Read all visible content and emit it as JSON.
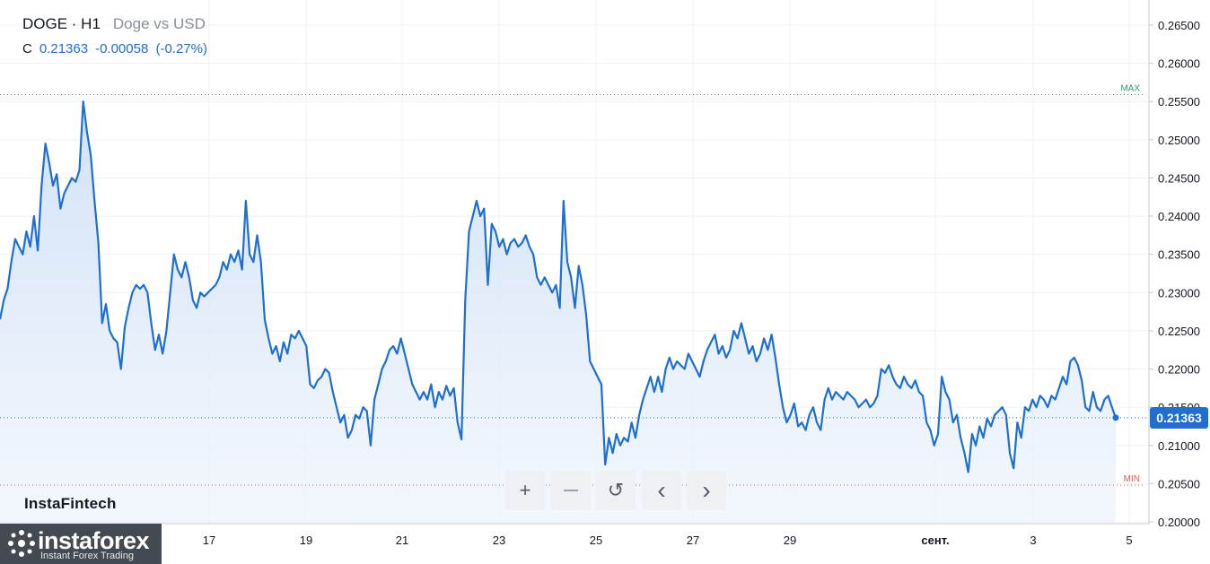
{
  "header": {
    "symbol": "DOGE · H1",
    "description": "Doge vs USD"
  },
  "quote": {
    "label": "C",
    "close": "0.21363",
    "change": "-0.00058",
    "change_pct": "(-0.27%)"
  },
  "brand": {
    "watermark": "InstaFintech"
  },
  "logo": {
    "name": "instaforex",
    "tagline": "Instant Forex Trading"
  },
  "controls": [
    {
      "name": "zoom-in-button",
      "icon": "plus-icon",
      "glyph": "+"
    },
    {
      "name": "zoom-out-button",
      "icon": "minus-icon",
      "glyph": "—"
    },
    {
      "name": "reset-button",
      "icon": "reset-icon",
      "glyph": "↺"
    },
    {
      "name": "scroll-left-button",
      "icon": "chevron-left-icon",
      "glyph": "‹"
    },
    {
      "name": "scroll-right-button",
      "icon": "chevron-right-icon",
      "glyph": "›"
    }
  ],
  "colors": {
    "line": "#1e6fd0",
    "max": "#2e9e6b",
    "min": "#e05a5a",
    "accent": "#1e6fd0"
  },
  "chart_data": {
    "type": "area",
    "ylim": [
      0.2,
      0.266
    ],
    "x_ticks": [
      "17",
      "19",
      "21",
      "23",
      "25",
      "27",
      "29",
      "сент.",
      "3",
      "5"
    ],
    "y_ticks": [
      "0.26500",
      "0.26000",
      "0.25500",
      "0.25000",
      "0.24500",
      "0.24000",
      "0.23500",
      "0.23000",
      "0.22500",
      "0.22000",
      "0.21500",
      "0.21000",
      "0.20500",
      "0.20000"
    ],
    "max_label": "MAX",
    "min_label": "MIN",
    "max_value": 0.2559,
    "min_value": 0.2048,
    "last_value": 0.21363,
    "last_label": "0.21363",
    "series": [
      {
        "values": [
          0.2265,
          0.229,
          0.2305,
          0.234,
          0.237,
          0.236,
          0.235,
          0.238,
          0.236,
          0.24,
          0.2355,
          0.244,
          0.2495,
          0.247,
          0.244,
          0.2455,
          0.241,
          0.243,
          0.244,
          0.245,
          0.2445,
          0.246,
          0.255,
          0.251,
          0.248,
          0.242,
          0.2365,
          0.226,
          0.2285,
          0.225,
          0.224,
          0.2235,
          0.22,
          0.2255,
          0.228,
          0.23,
          0.231,
          0.2305,
          0.231,
          0.23,
          0.226,
          0.2225,
          0.2245,
          0.222,
          0.225,
          0.23,
          0.235,
          0.233,
          0.232,
          0.234,
          0.232,
          0.229,
          0.228,
          0.23,
          0.2295,
          0.23,
          0.2305,
          0.231,
          0.232,
          0.234,
          0.233,
          0.235,
          0.234,
          0.2355,
          0.233,
          0.242,
          0.235,
          0.234,
          0.2375,
          0.234,
          0.2265,
          0.224,
          0.222,
          0.223,
          0.221,
          0.2235,
          0.222,
          0.2245,
          0.224,
          0.225,
          0.224,
          0.223,
          0.218,
          0.2175,
          0.2185,
          0.219,
          0.22,
          0.2195,
          0.217,
          0.215,
          0.213,
          0.214,
          0.211,
          0.212,
          0.214,
          0.2135,
          0.215,
          0.2145,
          0.21,
          0.216,
          0.218,
          0.22,
          0.221,
          0.2225,
          0.223,
          0.222,
          0.224,
          0.222,
          0.22,
          0.218,
          0.217,
          0.216,
          0.217,
          0.216,
          0.218,
          0.215,
          0.217,
          0.216,
          0.2178,
          0.2165,
          0.2175,
          0.213,
          0.2108,
          0.229,
          0.238,
          0.24,
          0.242,
          0.24,
          0.241,
          0.231,
          0.239,
          0.238,
          0.236,
          0.237,
          0.235,
          0.2365,
          0.237,
          0.236,
          0.2365,
          0.2375,
          0.236,
          0.235,
          0.232,
          0.231,
          0.232,
          0.231,
          0.23,
          0.231,
          0.228,
          0.242,
          0.234,
          0.232,
          0.228,
          0.2335,
          0.231,
          0.227,
          0.221,
          0.22,
          0.219,
          0.218,
          0.2075,
          0.211,
          0.209,
          0.2115,
          0.21,
          0.211,
          0.2105,
          0.213,
          0.211,
          0.214,
          0.216,
          0.2175,
          0.219,
          0.217,
          0.219,
          0.217,
          0.22,
          0.2215,
          0.22,
          0.221,
          0.2205,
          0.22,
          0.222,
          0.221,
          0.22,
          0.219,
          0.221,
          0.2225,
          0.2235,
          0.2245,
          0.222,
          0.223,
          0.2215,
          0.2225,
          0.225,
          0.224,
          0.226,
          0.224,
          0.222,
          0.223,
          0.221,
          0.222,
          0.224,
          0.2225,
          0.2245,
          0.2215,
          0.218,
          0.215,
          0.213,
          0.214,
          0.2155,
          0.2125,
          0.213,
          0.212,
          0.214,
          0.215,
          0.213,
          0.212,
          0.216,
          0.2175,
          0.216,
          0.217,
          0.2165,
          0.216,
          0.217,
          0.2165,
          0.216,
          0.215,
          0.2155,
          0.216,
          0.215,
          0.2155,
          0.2165,
          0.22,
          0.2195,
          0.2205,
          0.219,
          0.218,
          0.2175,
          0.219,
          0.218,
          0.2175,
          0.2185,
          0.217,
          0.2165,
          0.213,
          0.212,
          0.21,
          0.2115,
          0.219,
          0.217,
          0.216,
          0.213,
          0.214,
          0.211,
          0.209,
          0.2065,
          0.2115,
          0.21,
          0.2125,
          0.211,
          0.2135,
          0.2125,
          0.214,
          0.2145,
          0.215,
          0.214,
          0.209,
          0.207,
          0.213,
          0.211,
          0.215,
          0.2145,
          0.216,
          0.215,
          0.2165,
          0.216,
          0.215,
          0.2165,
          0.216,
          0.2175,
          0.219,
          0.218,
          0.221,
          0.2215,
          0.2205,
          0.2185,
          0.215,
          0.2145,
          0.217,
          0.215,
          0.2145,
          0.216,
          0.2165,
          0.215,
          0.2136
        ]
      }
    ]
  }
}
